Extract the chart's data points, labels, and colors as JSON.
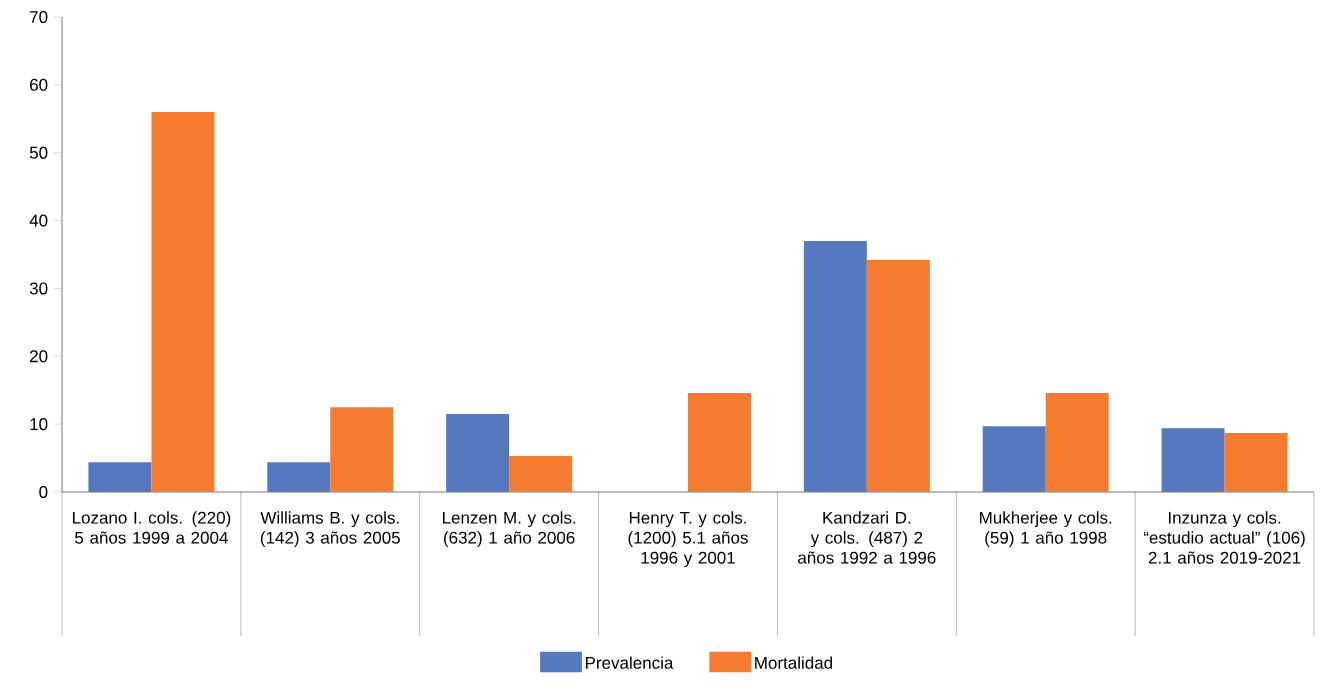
{
  "chart_data": {
    "type": "bar",
    "categories": [
      "Lozano I. cols. (220) 5 años 1999 a 2004",
      "Williams B. y cols. (142) 3 años 2005",
      "Lenzen M. y cols. (632) 1 año 2006",
      "Henry T. y cols. (1200) 5.1 años 1996 y 2001",
      "Kandzari D. y cols. (487) 2 años 1992 a 1996",
      "Mukherjee y cols. (59) 1 año 1998",
      "Inzunza y cols. “estudio actual” (106) 2.1 años 2019-2021"
    ],
    "series": [
      {
        "name": "Prevalencia",
        "color": "#5578be",
        "values": [
          4.4,
          4.4,
          11.5,
          null,
          37.0,
          9.7,
          9.4
        ]
      },
      {
        "name": "Mortalidad",
        "color": "#f47b30",
        "values": [
          56.0,
          12.5,
          5.3,
          14.6,
          34.2,
          14.6,
          8.7
        ]
      }
    ],
    "ylim": [
      0,
      70
    ],
    "yticks": [
      0,
      10,
      20,
      30,
      40,
      50,
      60,
      70
    ],
    "legend": "bottom"
  }
}
